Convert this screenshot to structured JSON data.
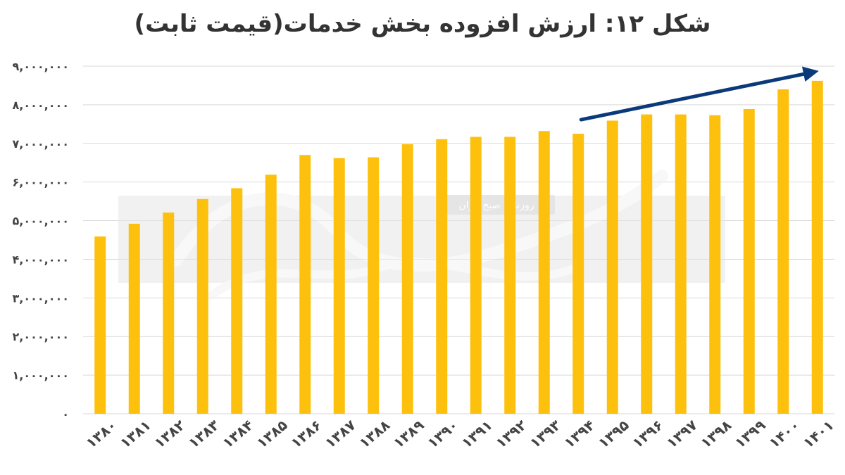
{
  "chart_data": {
    "type": "bar",
    "title": "شکل ۱۲: ارزش افزوده بخش خدمات(قیمت ثابت)",
    "xlabel": "",
    "ylabel": "",
    "ylim": [
      0,
      9000000
    ],
    "yticks": [
      {
        "value": 0,
        "label": "۰"
      },
      {
        "value": 1000000,
        "label": "۱,۰۰۰,۰۰۰"
      },
      {
        "value": 2000000,
        "label": "۲,۰۰۰,۰۰۰"
      },
      {
        "value": 3000000,
        "label": "۳,۰۰۰,۰۰۰"
      },
      {
        "value": 4000000,
        "label": "۴,۰۰۰,۰۰۰"
      },
      {
        "value": 5000000,
        "label": "۵,۰۰۰,۰۰۰"
      },
      {
        "value": 6000000,
        "label": "۶,۰۰۰,۰۰۰"
      },
      {
        "value": 7000000,
        "label": "۷,۰۰۰,۰۰۰"
      },
      {
        "value": 8000000,
        "label": "۸,۰۰۰,۰۰۰"
      },
      {
        "value": 9000000,
        "label": "۹,۰۰۰,۰۰۰"
      }
    ],
    "categories": [
      "۱۳۸۰",
      "۱۳۸۱",
      "۱۳۸۲",
      "۱۳۸۳",
      "۱۳۸۴",
      "۱۳۸۵",
      "۱۳۸۶",
      "۱۳۸۷",
      "۱۳۸۸",
      "۱۳۸۹",
      "۱۳۹۰",
      "۱۳۹۱",
      "۱۳۹۲",
      "۱۳۹۳",
      "۱۳۹۴",
      "۱۳۹۵",
      "۱۳۹۶",
      "۱۳۹۷",
      "۱۳۹۸",
      "۱۳۹۹",
      "۱۴۰۰",
      "۱۴۰۱"
    ],
    "values": [
      4590000,
      4920000,
      5210000,
      5560000,
      5840000,
      6190000,
      6700000,
      6620000,
      6640000,
      6980000,
      7110000,
      7170000,
      7170000,
      7320000,
      7250000,
      7590000,
      7750000,
      7750000,
      7730000,
      7890000,
      8400000,
      8620000
    ],
    "bar_color": "#FDC10D",
    "grid": true,
    "trend_arrow": {
      "color": "#0B3A7A",
      "from_category": "۱۳۹۴",
      "to_category": "۱۴۰۱"
    }
  },
  "watermark": {
    "text": "روزنامه صبح ایران"
  }
}
